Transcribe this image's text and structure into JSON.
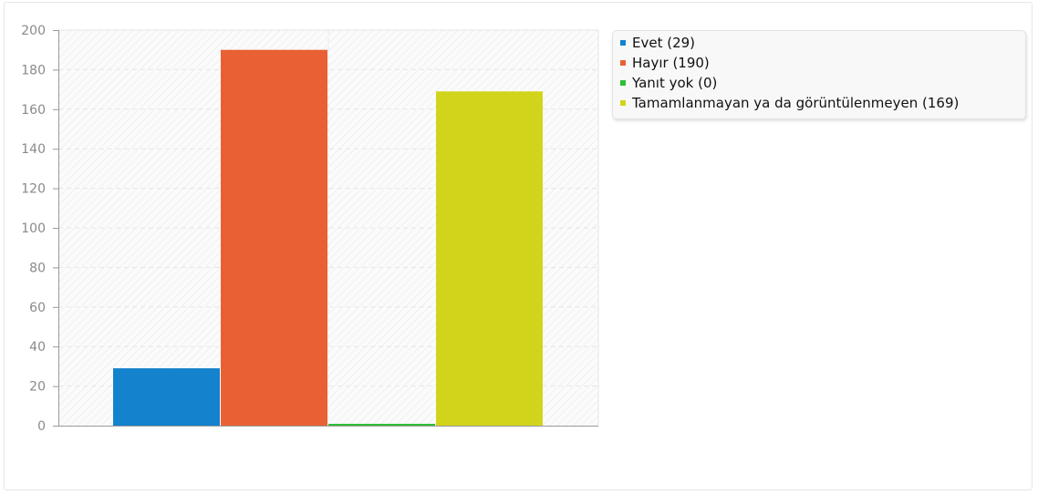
{
  "chart_data": {
    "type": "bar",
    "title": "",
    "xlabel": "",
    "ylabel": "",
    "ylim": [
      0,
      200
    ],
    "yticks": [
      0,
      20,
      40,
      60,
      80,
      100,
      120,
      140,
      160,
      180,
      200
    ],
    "grid": true,
    "legend_position": "right",
    "series": [
      {
        "name": "Evet (29)",
        "value": 29,
        "color": "#1482cc"
      },
      {
        "name": "Hayır (190)",
        "value": 190,
        "color": "#e96034"
      },
      {
        "name": "Yanıt yok (0)",
        "value": 0,
        "color": "#2ebf35"
      },
      {
        "name": "Tamamlanmayan ya da görüntülenmeyen (169)",
        "value": 169,
        "color": "#d2d41c"
      }
    ]
  }
}
